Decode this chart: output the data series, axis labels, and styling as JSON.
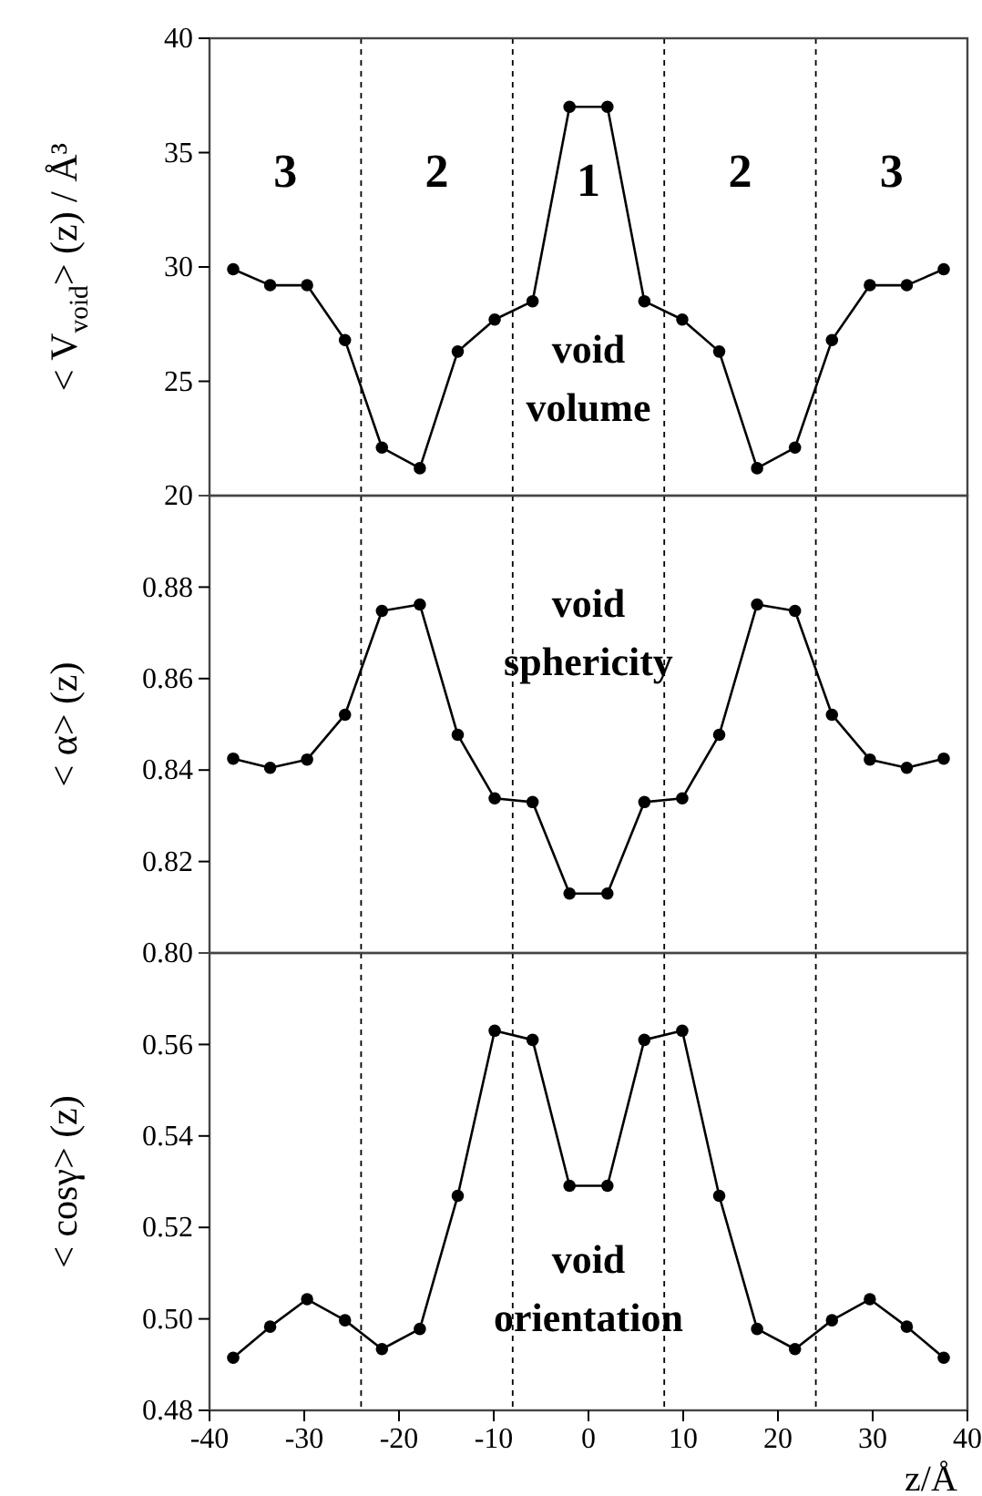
{
  "chart_data": [
    {
      "type": "line",
      "ylabel": "< V$_{void}$> (z) / Å³",
      "x": [
        -37.5,
        -33.6,
        -29.7,
        -25.7,
        -21.8,
        -17.8,
        -13.8,
        -9.9,
        -5.9,
        -2,
        2,
        5.9,
        9.9,
        13.8,
        17.8,
        21.8,
        25.7,
        29.7,
        33.6,
        37.5
      ],
      "series": [
        {
          "color": "#000000",
          "values": [
            29.9,
            29.2,
            29.2,
            26.8,
            22.1,
            21.2,
            26.3,
            27.7,
            28.5,
            37.0,
            37.0,
            28.5,
            27.7,
            26.3,
            21.2,
            22.1,
            26.8,
            29.2,
            29.2,
            29.9
          ]
        }
      ],
      "xlim": [
        -40,
        40
      ],
      "ylim": [
        20,
        40
      ],
      "yticks": [
        20,
        25,
        30,
        35,
        40
      ],
      "tick_labels": "y",
      "marker": "circle",
      "line_style": "solid",
      "ref_lines": [
        {
          "axis": "x",
          "value": -24,
          "line_style": "dashed",
          "color": "#000000"
        },
        {
          "axis": "x",
          "value": -8,
          "line_style": "dashed",
          "color": "#000000"
        },
        {
          "axis": "x",
          "value": 8,
          "line_style": "dashed",
          "color": "#000000"
        },
        {
          "axis": "x",
          "value": 24,
          "line_style": "dashed",
          "color": "#000000"
        }
      ],
      "annotations": [
        "3",
        "2",
        "1",
        "2",
        "3",
        "void volume"
      ]
    },
    {
      "type": "line",
      "ylabel": "< α> (z)",
      "x": [
        -37.5,
        -33.6,
        -29.7,
        -25.7,
        -21.8,
        -17.8,
        -13.8,
        -9.9,
        -5.9,
        -2,
        2,
        5.9,
        9.9,
        13.8,
        17.8,
        21.8,
        25.7,
        29.7,
        33.6,
        37.5
      ],
      "series": [
        {
          "color": "#000000",
          "values": [
            0.8425,
            0.8405,
            0.8423,
            0.8521,
            0.8748,
            0.8762,
            0.8477,
            0.8338,
            0.833,
            0.813,
            0.813,
            0.833,
            0.8338,
            0.8477,
            0.8762,
            0.8748,
            0.8521,
            0.8423,
            0.8405,
            0.8425
          ]
        }
      ],
      "xlim": [
        -40,
        40
      ],
      "ylim": [
        0.8,
        0.9
      ],
      "yticks": [
        {
          "value": 0.8,
          "label": "0.80"
        },
        {
          "value": 0.82,
          "label": "0.82"
        },
        {
          "value": 0.84,
          "label": "0.84"
        },
        {
          "value": 0.86,
          "label": "0.86"
        },
        {
          "value": 0.88,
          "label": "0.88"
        }
      ],
      "tick_labels": "y",
      "marker": "circle",
      "line_style": "solid",
      "ref_lines": [
        {
          "axis": "x",
          "value": -24,
          "line_style": "dashed",
          "color": "#000000"
        },
        {
          "axis": "x",
          "value": -8,
          "line_style": "dashed",
          "color": "#000000"
        },
        {
          "axis": "x",
          "value": 8,
          "line_style": "dashed",
          "color": "#000000"
        },
        {
          "axis": "x",
          "value": 24,
          "line_style": "dashed",
          "color": "#000000"
        }
      ],
      "annotations": [
        "void sphericity"
      ]
    },
    {
      "type": "line",
      "xlabel": "z/Å",
      "ylabel": "< cosγ> (z)",
      "x": [
        -37.5,
        -33.6,
        -29.7,
        -25.7,
        -21.8,
        -17.8,
        -13.8,
        -9.9,
        -5.9,
        -2,
        2,
        5.9,
        9.9,
        13.8,
        17.8,
        21.8,
        25.7,
        29.7,
        33.6,
        37.5
      ],
      "series": [
        {
          "color": "#000000",
          "values": [
            0.4915,
            0.4983,
            0.5043,
            0.4997,
            0.4934,
            0.4978,
            0.5269,
            0.563,
            0.561,
            0.5291,
            0.5291,
            0.561,
            0.563,
            0.5269,
            0.4978,
            0.4934,
            0.4997,
            0.5043,
            0.4983,
            0.4915
          ]
        }
      ],
      "xlim": [
        -40,
        40
      ],
      "xticks": [
        -40,
        -30,
        -20,
        -10,
        0,
        10,
        20,
        30,
        40
      ],
      "ylim": [
        0.48,
        0.58
      ],
      "yticks": [
        {
          "value": 0.48,
          "label": "0.48"
        },
        {
          "value": 0.5,
          "label": "0.50"
        },
        {
          "value": 0.52,
          "label": "0.52"
        },
        {
          "value": 0.54,
          "label": "0.54"
        },
        {
          "value": 0.56,
          "label": "0.56"
        }
      ],
      "marker": "circle",
      "line_style": "solid",
      "ref_lines": [
        {
          "axis": "x",
          "value": -24,
          "line_style": "dashed",
          "color": "#000000"
        },
        {
          "axis": "x",
          "value": -8,
          "line_style": "dashed",
          "color": "#000000"
        },
        {
          "axis": "x",
          "value": 8,
          "line_style": "dashed",
          "color": "#000000"
        },
        {
          "axis": "x",
          "value": 24,
          "line_style": "dashed",
          "color": "#000000"
        }
      ],
      "annotations": [
        "void orientation"
      ]
    }
  ]
}
